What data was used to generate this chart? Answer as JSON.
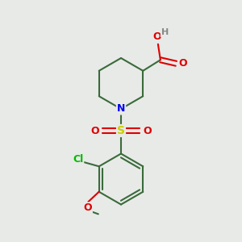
{
  "bg_color": "#e8eae8",
  "bond_color": "#3a6b3a",
  "bond_width": 1.5,
  "n_color": "#0000ee",
  "o_color": "#dd0000",
  "s_color": "#cccc00",
  "cl_color": "#00bb00",
  "h_color": "#888888",
  "figsize": [
    3.0,
    3.0
  ],
  "dpi": 100,
  "xlim": [
    0,
    10
  ],
  "ylim": [
    0,
    10
  ]
}
